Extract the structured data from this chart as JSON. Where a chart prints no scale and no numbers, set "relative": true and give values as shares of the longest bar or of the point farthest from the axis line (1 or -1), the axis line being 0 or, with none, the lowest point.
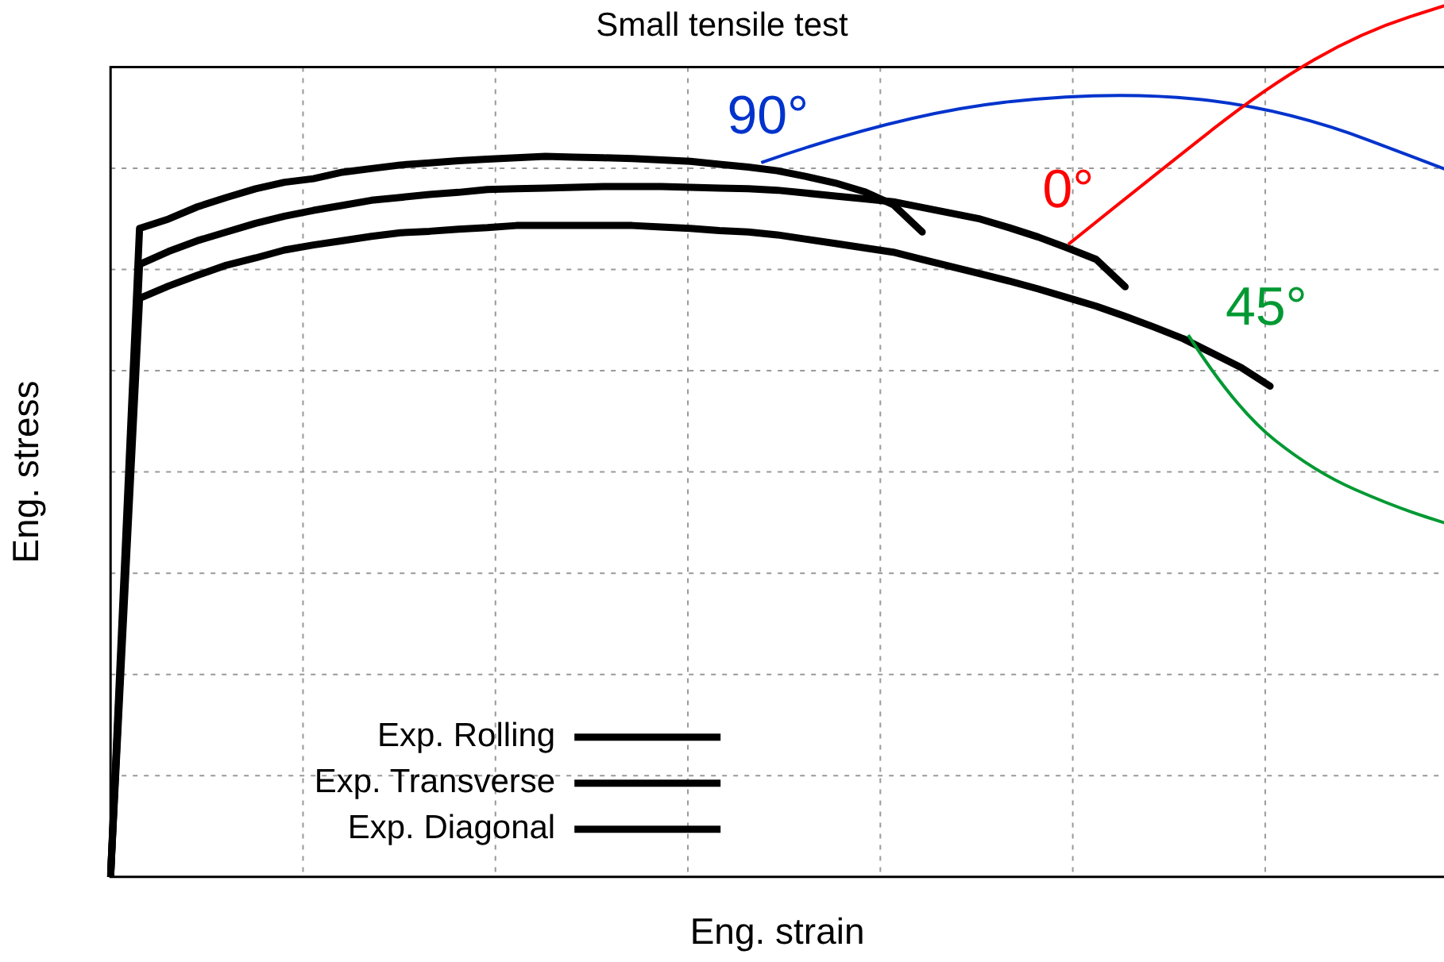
{
  "chart_data": {
    "type": "line",
    "title": "Small tensile test",
    "xlabel": "Eng. strain",
    "ylabel": "Eng. stress",
    "relative": true,
    "grid": true,
    "legend": "bottom left",
    "marker": "none",
    "line_style": "solid",
    "categories": [
      null,
      null,
      null,
      null,
      null,
      null,
      null,
      null,
      null,
      null,
      null,
      null,
      null,
      null,
      null,
      null,
      null,
      null,
      null,
      null,
      null,
      null,
      null,
      null,
      null,
      null,
      null,
      null,
      null,
      null,
      null,
      null,
      null,
      null,
      null,
      null,
      null,
      null,
      null,
      null,
      null,
      null,
      null,
      null,
      null,
      null,
      null
    ],
    "series": [
      {
        "name": "Exp. Rolling",
        "color": "#000000",
        "values": [
          0,
          0.85,
          0.868,
          0.883,
          0.895,
          0.907,
          0.917,
          0.925,
          0.932,
          0.939,
          0.943,
          0.947,
          0.95,
          0.954,
          0.955,
          0.956,
          0.957,
          0.958,
          0.958,
          0.958,
          0.957,
          0.956,
          0.955,
          0.953,
          0.949,
          0.945,
          0.941,
          0.937,
          0.929,
          0.921,
          0.913,
          0.901,
          0.888,
          0.873,
          0.857,
          0.819,
          null,
          null,
          null,
          null,
          null,
          null,
          null,
          null,
          null,
          null,
          null
        ]
      },
      {
        "name": "Exp. Transverse",
        "color": "#000000",
        "values": [
          0,
          0.9,
          0.913,
          0.93,
          0.943,
          0.955,
          0.964,
          0.969,
          0.978,
          0.983,
          0.988,
          0.991,
          0.994,
          0.996,
          0.998,
          1,
          0.999,
          0.998,
          0.997,
          0.995,
          0.993,
          0.989,
          0.985,
          0.98,
          0.972,
          0.963,
          0.951,
          0.933,
          0.895,
          null,
          null,
          null,
          null,
          null,
          null,
          null,
          null,
          null,
          null,
          null,
          null,
          null,
          null,
          null,
          null,
          null,
          null
        ]
      },
      {
        "name": "Exp. Diagonal",
        "color": "#000000",
        "values": [
          0,
          0.803,
          0.82,
          0.835,
          0.849,
          0.859,
          0.87,
          0.877,
          0.883,
          0.889,
          0.894,
          0.896,
          0.899,
          0.901,
          0.904,
          0.904,
          0.904,
          0.904,
          0.904,
          0.902,
          0.9,
          0.897,
          0.895,
          0.891,
          0.885,
          0.879,
          0.873,
          0.867,
          0.857,
          0.847,
          0.837,
          0.827,
          0.816,
          0.804,
          0.792,
          0.778,
          0.763,
          0.747,
          0.727,
          0.707,
          0.681,
          null,
          null,
          null,
          null,
          null,
          null
        ]
      }
    ],
    "annotations": [
      "90°",
      "0°",
      "45°"
    ]
  }
}
